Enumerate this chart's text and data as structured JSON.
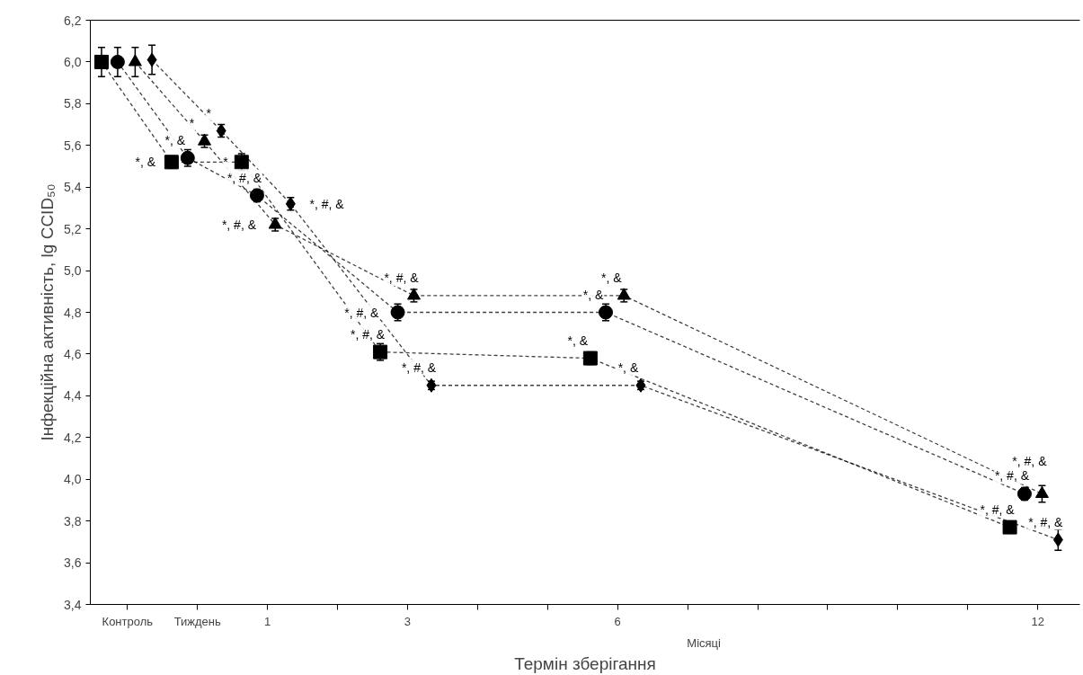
{
  "chart_data": {
    "type": "line",
    "xlabel": "Термін зберігання",
    "ylabel": "Інфекційна активність, lg CCID₅₀",
    "xlim": [
      -1.53,
      12.6
    ],
    "xticks": [
      {
        "value": -1,
        "label": "Контроль"
      },
      {
        "value": 0,
        "label": "Тиждень"
      },
      1,
      {
        "value": 2,
        "label": null
      },
      3,
      {
        "value": 4,
        "label": null
      },
      {
        "value": 5,
        "label": null
      },
      6,
      {
        "value": 7,
        "label": null
      },
      {
        "value": 8,
        "label": null
      },
      {
        "value": 9,
        "label": null
      },
      {
        "value": 10,
        "label": null
      },
      {
        "value": 11,
        "label": null
      },
      12
    ],
    "ylim": [
      3.4,
      6.2
    ],
    "yticks": [
      {
        "value": 3.4,
        "label": "3,4"
      },
      {
        "value": 3.6,
        "label": "3,6"
      },
      {
        "value": 3.8,
        "label": "3,8"
      },
      {
        "value": 4.0,
        "label": "4,0"
      },
      {
        "value": 4.2,
        "label": "4,2"
      },
      {
        "value": 4.4,
        "label": "4,4"
      },
      {
        "value": 4.6,
        "label": "4,6"
      },
      {
        "value": 4.8,
        "label": "4,8"
      },
      {
        "value": 5.0,
        "label": "5,0"
      },
      {
        "value": 5.2,
        "label": "5,2"
      },
      {
        "value": 5.4,
        "label": "5,4"
      },
      {
        "value": 5.6,
        "label": "5,6"
      },
      {
        "value": 5.8,
        "label": "5,8"
      },
      {
        "value": 6.0,
        "label": "6,0"
      },
      {
        "value": 6.2,
        "label": "6,2"
      }
    ],
    "grid": false,
    "line_style": "dashed",
    "series": [
      {
        "marker": "square",
        "color": "#000000",
        "x": [
          -1.37,
          -0.37,
          0.63,
          2.61,
          5.61,
          11.6
        ],
        "values": [
          6.0,
          5.52,
          5.52,
          4.61,
          4.58,
          3.77
        ],
        "errors": [
          0.07,
          0.03,
          0.04,
          0.04,
          0.03,
          0.02
        ]
      },
      {
        "marker": "circle",
        "color": "#000000",
        "x": [
          -1.14,
          -0.14,
          0.85,
          2.86,
          5.83,
          11.81
        ],
        "values": [
          6.0,
          5.54,
          5.36,
          4.8,
          4.8,
          3.93
        ],
        "errors": [
          0.07,
          0.04,
          0.03,
          0.04,
          0.04,
          0.03
        ]
      },
      {
        "marker": "triangle",
        "color": "#000000",
        "x": [
          -0.89,
          0.1,
          1.11,
          3.09,
          6.09,
          12.06
        ],
        "values": [
          6.0,
          5.62,
          5.22,
          4.88,
          4.88,
          3.93
        ],
        "errors": [
          0.07,
          0.03,
          0.03,
          0.03,
          0.03,
          0.04
        ]
      },
      {
        "marker": "diamond",
        "color": "#000000",
        "x": [
          -0.65,
          0.34,
          1.33,
          3.34,
          6.33,
          12.29
        ],
        "values": [
          6.01,
          5.67,
          5.32,
          4.45,
          4.45,
          3.71
        ],
        "errors": [
          0.07,
          0.03,
          0.03,
          0.02,
          0.02,
          0.05
        ]
      }
    ],
    "annotations": [
      "Місяці",
      {
        "text": "*",
        "x": 0.34,
        "y": 5.67
      },
      {
        "text": "*",
        "x": 0.1,
        "y": 5.62
      },
      {
        "text": "*, &",
        "x": -0.14,
        "y": 5.54
      },
      {
        "text": "*, &",
        "x": -0.37,
        "y": 5.52
      },
      {
        "text": "*",
        "x": 0.63,
        "y": 5.52
      },
      {
        "text": "*, #, &",
        "x": 0.85,
        "y": 5.36
      },
      {
        "text": "*, #, &",
        "x": 1.33,
        "y": 5.32
      },
      {
        "text": "*, #, &",
        "x": 1.11,
        "y": 5.22
      },
      {
        "text": "*, #, &",
        "x": 3.09,
        "y": 4.88
      },
      {
        "text": "*, #, &",
        "x": 2.86,
        "y": 4.8
      },
      {
        "text": "*, #, &",
        "x": 2.61,
        "y": 4.61
      },
      {
        "text": "*, #, &",
        "x": 3.34,
        "y": 4.45
      },
      {
        "text": "*, &",
        "x": 6.09,
        "y": 4.88
      },
      {
        "text": "*, &",
        "x": 5.83,
        "y": 4.8
      },
      {
        "text": "*, &",
        "x": 5.61,
        "y": 4.58
      },
      {
        "text": "*, &",
        "x": 6.33,
        "y": 4.45
      },
      {
        "text": "*, #, &",
        "x": 11.81,
        "y": 3.93
      },
      {
        "text": "*, #, &",
        "x": 12.06,
        "y": 3.93
      },
      {
        "text": "*, #, &",
        "x": 11.6,
        "y": 3.77
      },
      {
        "text": "*, #, &",
        "x": 12.29,
        "y": 3.71
      }
    ]
  }
}
